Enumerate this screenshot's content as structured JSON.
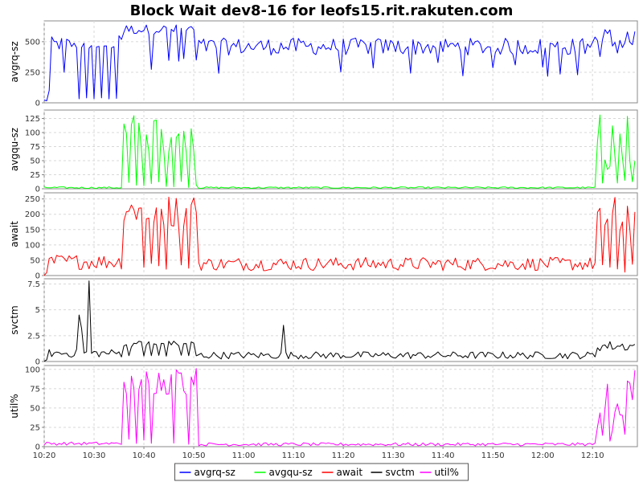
{
  "chart_data": {
    "type": "line",
    "title": "Block Wait dev8-16 for leofs15.rit.rakuten.com",
    "x_start": "10:20",
    "x_end": "12:19",
    "x_step_minutes": 0.5,
    "x_ticks": [
      "10:20",
      "10:30",
      "10:40",
      "10:50",
      "11:00",
      "11:10",
      "11:20",
      "11:30",
      "11:40",
      "11:50",
      "12:00",
      "12:10"
    ],
    "legend_position": "bottom",
    "grid": true,
    "panels": [
      {
        "ylabel": "avgrq-sz",
        "ylim": [
          0,
          670
        ],
        "yticks": [
          0,
          250,
          500
        ],
        "series": {
          "name": "avgrq-sz",
          "color": "#0000ff"
        },
        "segments": [
          {
            "from": "10:20",
            "to": "10:21",
            "base": 20,
            "amp": 10,
            "mode": "noise"
          },
          {
            "from": "10:21",
            "to": "10:26",
            "base": 480,
            "amp": 60,
            "dips": [
              [
                "10:21",
                100
              ],
              [
                "10:24",
                250
              ]
            ],
            "mode": "noise"
          },
          {
            "from": "10:26",
            "to": "10:35",
            "base": 470,
            "amp": 30,
            "low": 30,
            "mode": "alt"
          },
          {
            "from": "10:35",
            "to": "10:36",
            "base": 520,
            "amp": 30,
            "mode": "noise"
          },
          {
            "from": "10:36",
            "to": "10:51",
            "base": 600,
            "amp": 40,
            "low": 250,
            "dropprob": 0.28,
            "mode": "drops"
          },
          {
            "from": "10:51",
            "to": "12:10",
            "base": 460,
            "amp": 70,
            "low": 200,
            "dropprob": 0.07,
            "mode": "drops"
          },
          {
            "from": "12:10",
            "to": "12:19",
            "base": 500,
            "amp": 130,
            "mode": "noise"
          }
        ]
      },
      {
        "ylabel": "avgqu-sz",
        "ylim": [
          0,
          140
        ],
        "yticks": [
          0,
          25,
          50,
          75,
          100,
          125
        ],
        "series": {
          "name": "avgqu-sz",
          "color": "#00ff00"
        },
        "segments": [
          {
            "from": "10:20",
            "to": "10:36",
            "base": 2,
            "amp": 1.5,
            "mode": "noise"
          },
          {
            "from": "10:36",
            "to": "10:51",
            "base": 100,
            "amp": 35,
            "low": 2,
            "mode": "alt"
          },
          {
            "from": "10:51",
            "to": "12:11",
            "base": 2,
            "amp": 1.5,
            "mode": "noise"
          },
          {
            "from": "12:11",
            "to": "12:19",
            "base": 80,
            "amp": 55,
            "low": 2,
            "mode": "alt"
          }
        ]
      },
      {
        "ylabel": "await",
        "ylim": [
          0,
          270
        ],
        "yticks": [
          0,
          50,
          100,
          150,
          200,
          250
        ],
        "series": {
          "name": "await",
          "color": "#ff0000"
        },
        "segments": [
          {
            "from": "10:20",
            "to": "10:21",
            "base": 5,
            "amp": 5,
            "mode": "noise"
          },
          {
            "from": "10:21",
            "to": "10:36",
            "base": 45,
            "amp": 25,
            "mode": "noise"
          },
          {
            "from": "10:36",
            "to": "10:51",
            "base": 210,
            "amp": 55,
            "low": 20,
            "mode": "alt"
          },
          {
            "from": "10:51",
            "to": "12:11",
            "base": 38,
            "amp": 22,
            "mode": "noise"
          },
          {
            "from": "12:11",
            "to": "12:19",
            "base": 190,
            "amp": 70,
            "low": 10,
            "mode": "alt"
          }
        ]
      },
      {
        "ylabel": "svctm",
        "ylim": [
          0,
          8
        ],
        "yticks": [
          0,
          2.5,
          5,
          7.5
        ],
        "series": {
          "name": "svctm",
          "color": "#000000"
        },
        "segments": [
          {
            "from": "10:20",
            "to": "10:21",
            "base": 0.1,
            "amp": 0.1,
            "mode": "noise"
          },
          {
            "from": "10:21",
            "to": "10:36",
            "base": 0.8,
            "amp": 0.4,
            "spikes": [
              [
                "10:27",
                4.5
              ],
              [
                "10:27.5",
                3.2
              ],
              [
                "10:29",
                7.8
              ]
            ],
            "mode": "noise"
          },
          {
            "from": "10:36",
            "to": "10:51",
            "base": 1.7,
            "amp": 0.3,
            "low": 0.5,
            "mode": "alt"
          },
          {
            "from": "10:51",
            "to": "12:11",
            "base": 0.6,
            "amp": 0.35,
            "spikes": [
              [
                "11:08",
                3.5
              ]
            ],
            "mode": "noise"
          },
          {
            "from": "12:11",
            "to": "12:19",
            "base": 1.5,
            "amp": 0.5,
            "mode": "noise"
          }
        ]
      },
      {
        "ylabel": "util%",
        "ylim": [
          0,
          105
        ],
        "yticks": [
          0,
          25,
          50,
          75,
          100
        ],
        "series": {
          "name": "util%",
          "color": "#ff00ff"
        },
        "segments": [
          {
            "from": "10:20",
            "to": "10:36",
            "base": 4,
            "amp": 2,
            "mode": "noise"
          },
          {
            "from": "10:36",
            "to": "10:51",
            "base": 85,
            "amp": 18,
            "low": 3,
            "mode": "alt"
          },
          {
            "from": "10:51",
            "to": "12:11",
            "base": 3,
            "amp": 2,
            "mode": "noise"
          },
          {
            "from": "12:11",
            "to": "12:19",
            "base": 60,
            "amp": 40,
            "low": 3,
            "mode": "alt"
          }
        ]
      }
    ],
    "legend": [
      "avgrq-sz",
      "avgqu-sz",
      "await",
      "svctm",
      "util%"
    ]
  }
}
